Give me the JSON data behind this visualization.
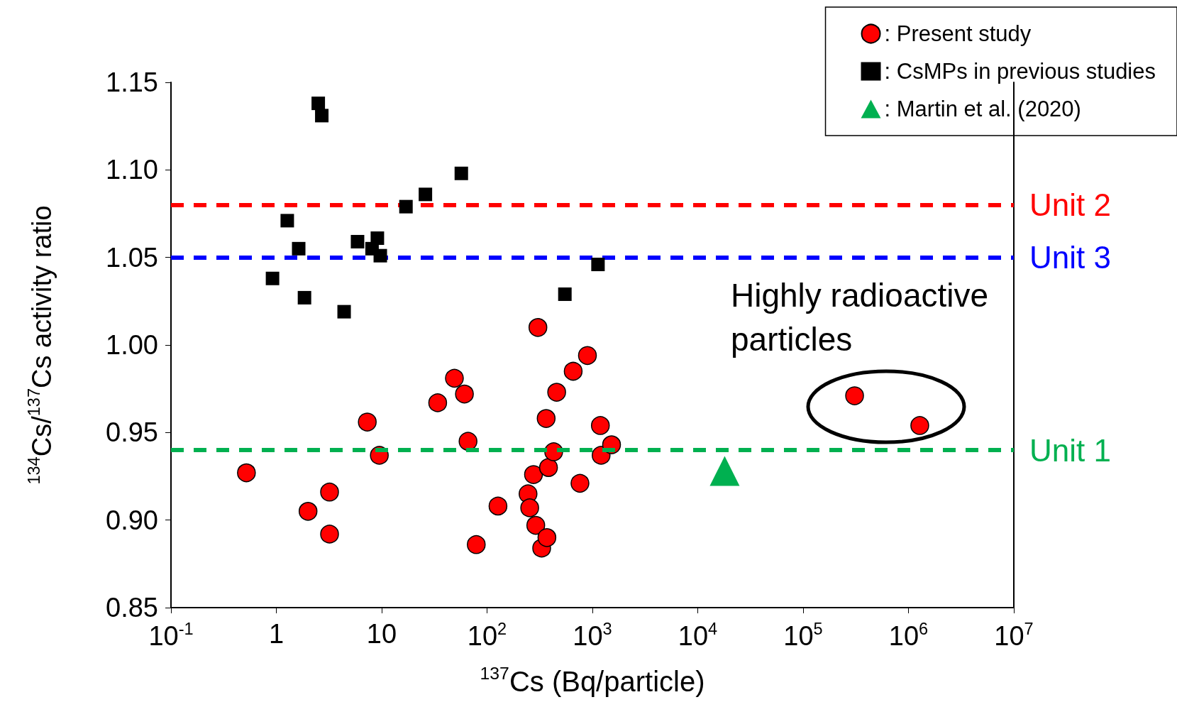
{
  "chart_data": {
    "type": "scatter",
    "xlabel": "$^{137}$Cs (Bq/particle)",
    "ylabel": "$^{134}$Cs/$^{137}$Cs activity ratio",
    "log": "x",
    "grid": false,
    "legend": "top right",
    "xlim": [
      0.1,
      10000000
    ],
    "xticks": [
      {
        "value": 0.1,
        "label": "10$^{-1}$"
      },
      1,
      10,
      {
        "value": 100,
        "label": "10$^{2}$"
      },
      {
        "value": 1000,
        "label": "10$^{3}$"
      },
      {
        "value": 10000,
        "label": "10$^{4}$"
      },
      {
        "value": 100000,
        "label": "10$^{5}$"
      },
      {
        "value": 1000000,
        "label": "10$^{6}$"
      },
      {
        "value": 10000000,
        "label": "10$^{7}$"
      }
    ],
    "ylim": [
      0.85,
      1.15
    ],
    "yticks": [
      0.85,
      {
        "value": 0.9,
        "label": "0.90"
      },
      0.95,
      {
        "value": 1.0,
        "label": "1.00"
      },
      1.05,
      {
        "value": 1.1,
        "label": "1.10"
      },
      1.15
    ],
    "series": [
      {
        "name": ": Present study",
        "color": "#ff0000",
        "marker": "circle",
        "x": [
          0.52,
          2.0,
          3.2,
          3.2,
          7.3,
          9.5,
          34,
          49,
          61,
          66,
          79,
          127,
          245,
          254,
          276,
          290,
          330,
          370,
          304,
          364,
          383,
          429,
          458,
          657,
          762,
          897,
          1190,
          1210,
          1520,
          308000,
          1280000
        ],
        "values": [
          0.927,
          0.905,
          0.916,
          0.892,
          0.956,
          0.937,
          0.967,
          0.981,
          0.972,
          0.945,
          0.886,
          0.908,
          0.915,
          0.907,
          0.926,
          0.897,
          0.884,
          0.89,
          1.01,
          0.958,
          0.93,
          0.939,
          0.973,
          0.985,
          0.921,
          0.994,
          0.954,
          0.937,
          0.943,
          0.971,
          0.954
        ]
      },
      {
        "name": ": CsMPs in previous studies",
        "color": "#000000",
        "marker": "square",
        "x": [
          2.5,
          2.7,
          57,
          26,
          17,
          1.27,
          1.63,
          5.9,
          9.1,
          8.1,
          9.7,
          1130,
          0.92,
          1.85,
          4.4,
          548
        ],
        "values": [
          1.138,
          1.131,
          1.098,
          1.086,
          1.079,
          1.071,
          1.055,
          1.059,
          1.061,
          1.055,
          1.051,
          1.046,
          1.038,
          1.027,
          1.019,
          1.029
        ]
      },
      {
        "name": ": Martin et al. (2020)",
        "color": "#00b050",
        "marker": "triangle",
        "x": [
          18000
        ],
        "values": [
          0.928
        ]
      }
    ],
    "ref_lines": [
      {
        "axis": "y",
        "value": 1.08,
        "label": "Unit 2",
        "color": "#ff0000",
        "line_style": "dashed"
      },
      {
        "axis": "y",
        "value": 1.05,
        "label": "Unit 3",
        "color": "#0000ff",
        "line_style": "dashed"
      },
      {
        "axis": "y",
        "value": 0.94,
        "label": "Unit 1",
        "color": "#00b050",
        "line_style": "dashed"
      }
    ],
    "annotations": [
      "Highly radioactive particles"
    ]
  }
}
